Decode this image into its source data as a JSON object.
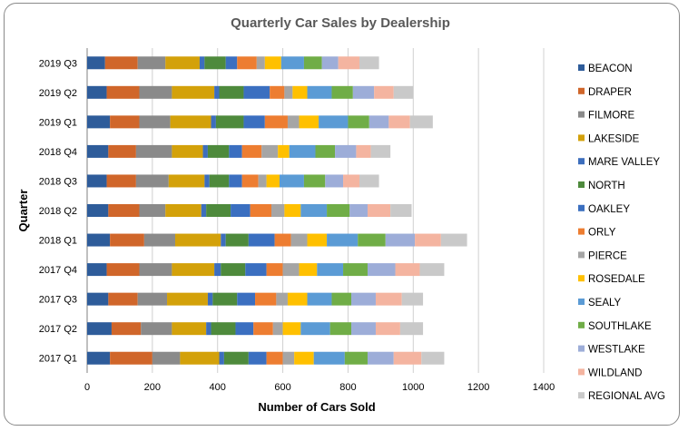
{
  "chart_data": {
    "type": "bar",
    "orientation": "horizontal",
    "stacked": true,
    "title": "Quarterly Car Sales by Dealership",
    "xlabel": "Number of Cars Sold",
    "ylabel": "Quarter",
    "xlim": [
      0,
      1400
    ],
    "xticks": [
      0,
      200,
      400,
      600,
      800,
      1000,
      1200,
      1400
    ],
    "grid": true,
    "legend_position": "right",
    "categories": [
      "2017 Q1",
      "2017 Q2",
      "2017 Q3",
      "2017 Q4",
      "2018 Q1",
      "2018 Q2",
      "2018 Q3",
      "2018 Q4",
      "2019 Q1",
      "2019 Q2",
      "2019 Q3"
    ],
    "series": [
      {
        "name": "BEACON",
        "color": "#2e5c9a",
        "values": [
          70,
          75,
          65,
          60,
          70,
          65,
          60,
          65,
          70,
          60,
          55
        ]
      },
      {
        "name": "DRAPER",
        "color": "#d0662a",
        "values": [
          130,
          90,
          90,
          100,
          105,
          95,
          90,
          85,
          90,
          100,
          100
        ]
      },
      {
        "name": "FILMORE",
        "color": "#8a8a8a",
        "values": [
          85,
          95,
          90,
          100,
          95,
          80,
          100,
          110,
          95,
          100,
          85
        ]
      },
      {
        "name": "LAKESIDE",
        "color": "#d3a10a",
        "values": [
          120,
          105,
          125,
          130,
          140,
          110,
          110,
          95,
          125,
          130,
          105
        ]
      },
      {
        "name": "MARE VALLEY",
        "color": "#3d6ebd",
        "values": [
          15,
          15,
          15,
          20,
          15,
          15,
          15,
          15,
          15,
          15,
          15
        ]
      },
      {
        "name": "NORTH",
        "color": "#4e8a3c",
        "values": [
          75,
          75,
          75,
          75,
          70,
          75,
          60,
          65,
          85,
          75,
          65
        ]
      },
      {
        "name": "OAKLEY",
        "color": "#3b6fc0",
        "values": [
          55,
          55,
          55,
          65,
          80,
          60,
          40,
          40,
          65,
          80,
          35
        ]
      },
      {
        "name": "ORLY",
        "color": "#ed7d31",
        "values": [
          50,
          60,
          65,
          50,
          50,
          65,
          50,
          60,
          70,
          45,
          60
        ]
      },
      {
        "name": "PIERCE",
        "color": "#a5a5a5",
        "values": [
          35,
          30,
          35,
          50,
          50,
          40,
          25,
          50,
          35,
          25,
          25
        ]
      },
      {
        "name": "ROSEDALE",
        "color": "#ffc000",
        "values": [
          60,
          55,
          60,
          55,
          60,
          50,
          40,
          35,
          60,
          45,
          50
        ]
      },
      {
        "name": "SEALY",
        "color": "#5b9bd5",
        "values": [
          95,
          90,
          75,
          80,
          95,
          80,
          75,
          80,
          90,
          75,
          70
        ]
      },
      {
        "name": "SOUTHLAKE",
        "color": "#70ad47",
        "values": [
          70,
          65,
          60,
          75,
          85,
          70,
          65,
          60,
          65,
          65,
          55
        ]
      },
      {
        "name": "WESTLAKE",
        "color": "#9dadd8",
        "values": [
          80,
          75,
          75,
          85,
          90,
          55,
          55,
          65,
          60,
          65,
          50
        ]
      },
      {
        "name": "WILDLAND",
        "color": "#f4b4a0",
        "values": [
          85,
          75,
          80,
          75,
          80,
          70,
          50,
          45,
          65,
          60,
          65
        ]
      },
      {
        "name": "REGIONAL AVG",
        "color": "#c9c9c9",
        "values": [
          70,
          70,
          65,
          75,
          80,
          65,
          60,
          60,
          70,
          60,
          60
        ]
      }
    ]
  }
}
